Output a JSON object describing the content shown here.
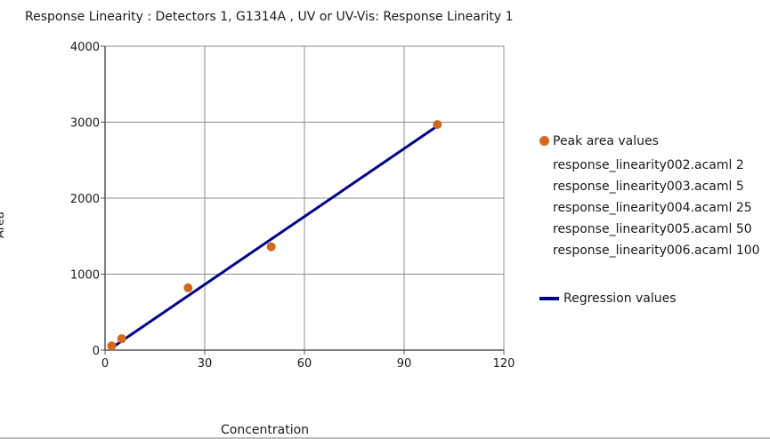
{
  "chart_data": {
    "type": "scatter",
    "title": "Response Linearity : Detectors 1, G1314A , UV or UV-Vis: Response Linearity 1",
    "xlabel": "Concentration",
    "ylabel": "Area",
    "xlim": [
      0,
      120
    ],
    "ylim": [
      0,
      4000
    ],
    "x_ticks": [
      0,
      30,
      60,
      90,
      120
    ],
    "y_ticks": [
      0,
      1000,
      2000,
      3000,
      4000
    ],
    "grid": true,
    "legend_position": "right",
    "series": [
      {
        "name": "Peak area values",
        "kind": "scatter",
        "color": "#D2691E",
        "points": [
          {
            "x": 2,
            "y": 55,
            "label": "response_linearity002.acaml 2"
          },
          {
            "x": 5,
            "y": 150,
            "label": "response_linearity003.acaml 5"
          },
          {
            "x": 25,
            "y": 820,
            "label": "response_linearity004.acaml 25"
          },
          {
            "x": 50,
            "y": 1360,
            "label": "response_linearity005.acaml 50"
          },
          {
            "x": 100,
            "y": 2970,
            "label": "response_linearity006.acaml 100"
          }
        ]
      },
      {
        "name": "Regression values",
        "kind": "line",
        "color": "#00008B",
        "points": [
          {
            "x": 2,
            "y": 30
          },
          {
            "x": 100,
            "y": 2950
          }
        ]
      }
    ]
  }
}
